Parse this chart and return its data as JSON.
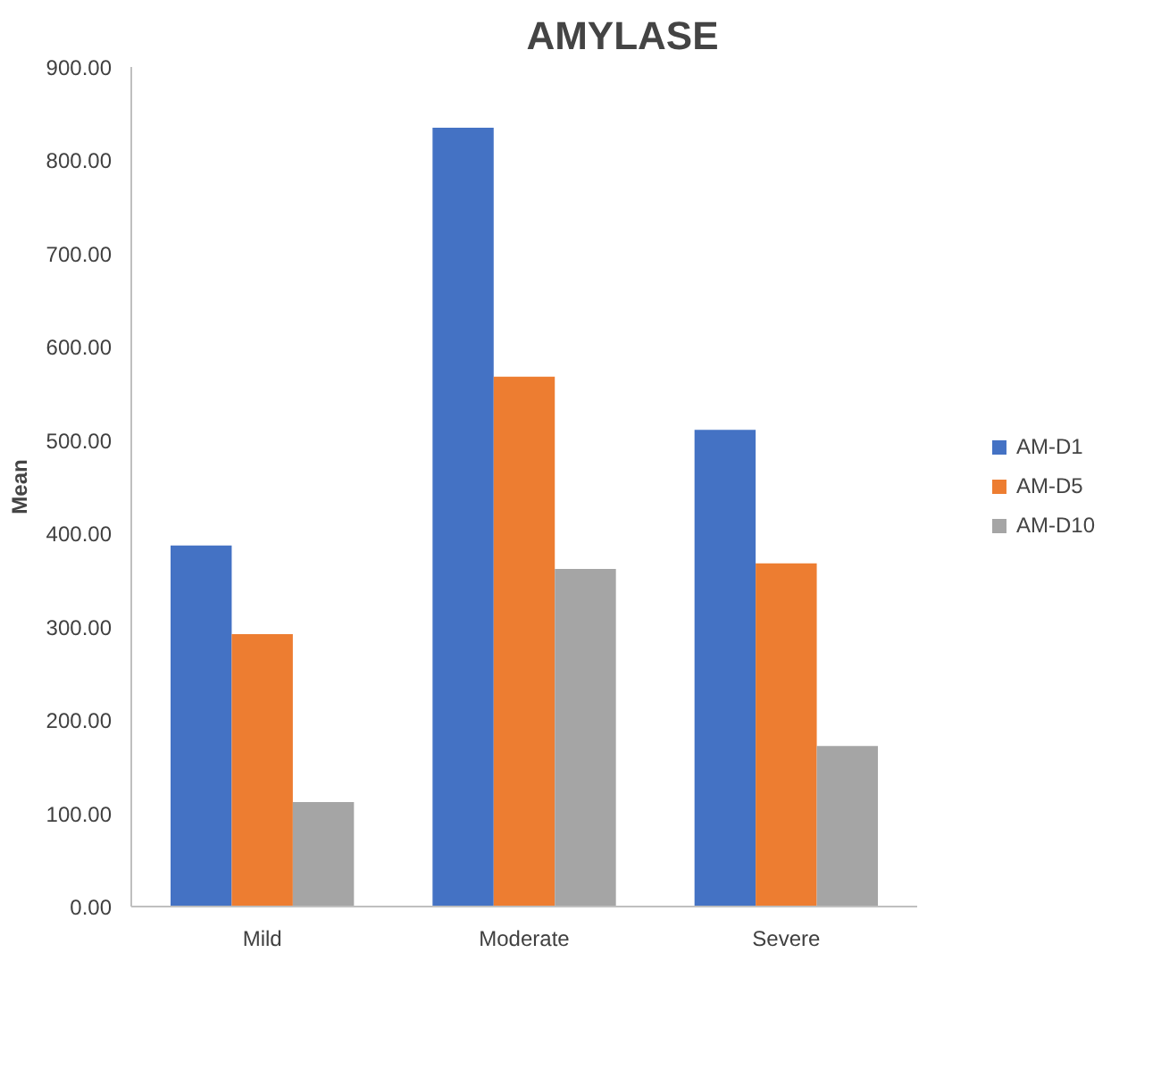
{
  "chart_data": {
    "type": "bar",
    "title": "AMYLASE",
    "ylabel": "Mean",
    "categories": [
      "Mild",
      "Moderate",
      "Severe"
    ],
    "series": [
      {
        "name": "AM-D1",
        "color": "#4472c4",
        "values": [
          387,
          835,
          511
        ]
      },
      {
        "name": "AM-D5",
        "color": "#ed7d31",
        "values": [
          292,
          568,
          368
        ]
      },
      {
        "name": "AM-D10",
        "color": "#a5a5a5",
        "values": [
          112,
          362,
          172
        ]
      }
    ],
    "ylim": [
      0,
      900
    ],
    "yticks": [
      {
        "value": 0,
        "label": "0.00"
      },
      {
        "value": 100,
        "label": "100.00"
      },
      {
        "value": 200,
        "label": "200.00"
      },
      {
        "value": 300,
        "label": "300.00"
      },
      {
        "value": 400,
        "label": "400.00"
      },
      {
        "value": 500,
        "label": "500.00"
      },
      {
        "value": 600,
        "label": "600.00"
      },
      {
        "value": 700,
        "label": "700.00"
      },
      {
        "value": 800,
        "label": "800.00"
      },
      {
        "value": 900,
        "label": "900.00"
      }
    ],
    "grid": false,
    "legend": "right"
  }
}
